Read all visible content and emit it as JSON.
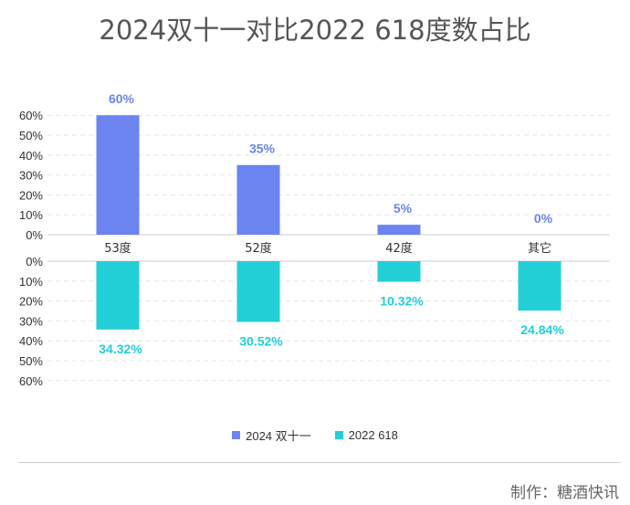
{
  "title": "2024双十一对比2022 618度数占比",
  "credit": "制作：糖酒快讯",
  "colors": {
    "top": "#6b84f0",
    "bottom": "#23cfd6",
    "grid": "#e6e6e6",
    "axis": "#cccccc"
  },
  "chart_data": {
    "type": "bar",
    "categories": [
      "53度",
      "52度",
      "42度",
      "其它"
    ],
    "series": [
      {
        "name": "2024 双十一",
        "values": [
          60,
          35,
          5,
          0
        ],
        "labels": [
          "60%",
          "35%",
          "5%",
          "0%"
        ]
      },
      {
        "name": "2022 618",
        "values": [
          34.32,
          30.52,
          10.32,
          24.84
        ],
        "labels": [
          "34.32%",
          "30.52%",
          "10.32%",
          "24.84%"
        ]
      }
    ],
    "upper_ticks": [
      "60%",
      "50%",
      "40%",
      "30%",
      "20%",
      "10%",
      "0%"
    ],
    "lower_ticks": [
      "0%",
      "10%",
      "20%",
      "30%",
      "40%",
      "50%",
      "60%"
    ],
    "ylim": [
      0,
      60
    ],
    "grid": true,
    "legend_position": "bottom"
  }
}
